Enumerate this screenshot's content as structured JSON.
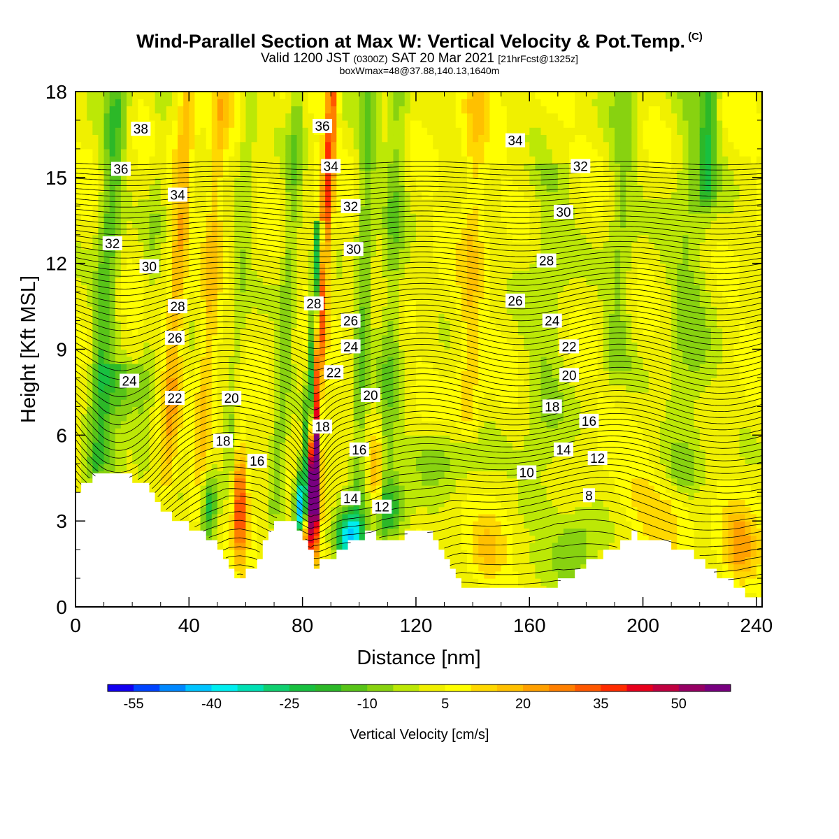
{
  "title": {
    "main": "Wind-Parallel Section at Max W: Vertical Velocity & Pot.Temp.",
    "copyright": "(C)",
    "valid_prefix": "Valid 1200 JST",
    "valid_z": "(0300Z)",
    "valid_date": "SAT 20 Mar 2021",
    "forecast": "[21hrFcst@1325z]",
    "box": "boxWmax=48@37.88,140.13,1640m"
  },
  "chart_data": {
    "type": "heatmap",
    "xlabel": "Distance [nm]",
    "ylabel": "Height [Kft MSL]",
    "xlim": [
      0,
      242
    ],
    "ylim": [
      0,
      18
    ],
    "xticks": [
      0,
      40,
      80,
      120,
      160,
      200,
      240
    ],
    "yticks": [
      0,
      3,
      6,
      9,
      12,
      15,
      18
    ],
    "colorbar": {
      "label": "Vertical Velocity [cm/s]",
      "tick_labels": [
        "-55",
        "-40",
        "-25",
        "-10",
        "5",
        "20",
        "35",
        "50"
      ],
      "bins": [
        -60,
        -55,
        -50,
        -45,
        -40,
        -35,
        -30,
        -25,
        -20,
        -15,
        -10,
        -5,
        0,
        5,
        10,
        15,
        20,
        25,
        30,
        35,
        40,
        45,
        50,
        55,
        60
      ],
      "colors": [
        "#1200f0",
        "#0044ff",
        "#0088ff",
        "#00c4ff",
        "#00eef0",
        "#00e0b4",
        "#10d070",
        "#18c040",
        "#2cb828",
        "#58c418",
        "#88d210",
        "#bce806",
        "#f0f000",
        "#ffff00",
        "#ffd800",
        "#ffc000",
        "#ffa000",
        "#ff8000",
        "#ff5800",
        "#ff2c00",
        "#e8001c",
        "#c00040",
        "#960064",
        "#780080"
      ]
    },
    "terrain_kft": [
      [
        0,
        3.9
      ],
      [
        2,
        4.2
      ],
      [
        7,
        4.5
      ],
      [
        10,
        4.8
      ],
      [
        19,
        4.5
      ],
      [
        25,
        4.2
      ],
      [
        28,
        3.8
      ],
      [
        31,
        3.4
      ],
      [
        35,
        3.1
      ],
      [
        39,
        2.9
      ],
      [
        44,
        2.6
      ],
      [
        48,
        2.3
      ],
      [
        51,
        2.0
      ],
      [
        54,
        1.3
      ],
      [
        58,
        1.0
      ],
      [
        63,
        1.3
      ],
      [
        66,
        2.0
      ],
      [
        69,
        2.6
      ],
      [
        72,
        3.1
      ],
      [
        77,
        3.1
      ],
      [
        81,
        2.2
      ],
      [
        83,
        2.0
      ],
      [
        84,
        1.3
      ],
      [
        87,
        1.5
      ],
      [
        94,
        2.0
      ],
      [
        98,
        2.3
      ],
      [
        104,
        2.6
      ],
      [
        108,
        2.2
      ],
      [
        114,
        2.3
      ],
      [
        118,
        2.6
      ],
      [
        123,
        2.6
      ],
      [
        126,
        2.5
      ],
      [
        130,
        1.9
      ],
      [
        133,
        1.2
      ],
      [
        136,
        0.7
      ],
      [
        170,
        0.7
      ],
      [
        172,
        1.0
      ],
      [
        178,
        1.3
      ],
      [
        184,
        1.7
      ],
      [
        190,
        2.0
      ],
      [
        197,
        2.5
      ],
      [
        210,
        2.2
      ],
      [
        218,
        1.9
      ],
      [
        222,
        1.5
      ],
      [
        226,
        1.1
      ],
      [
        230,
        0.9
      ],
      [
        234,
        0.7
      ],
      [
        238,
        0.3
      ],
      [
        242,
        0.2
      ]
    ],
    "w_field_cm_s": {
      "background": 4,
      "ridges": [
        {
          "x": 8,
          "w": 4,
          "y0": 4.5,
          "y1": 18,
          "v": -18
        },
        {
          "x": 14,
          "w": 7,
          "y0": 4.5,
          "y1": 8,
          "v": -12
        },
        {
          "x": 24,
          "w": 3,
          "y0": 4.5,
          "y1": 18,
          "v": -6
        },
        {
          "x": 33,
          "w": 3,
          "y0": 4,
          "y1": 18,
          "v": 15
        },
        {
          "x": 45,
          "w": 3,
          "y0": 3,
          "y1": 18,
          "v": 12
        },
        {
          "x": 55,
          "w": 3,
          "y0": 3,
          "y1": 18,
          "v": -8
        },
        {
          "x": 72,
          "w": 3,
          "y0": 3,
          "y1": 18,
          "v": -12
        },
        {
          "x": 82,
          "w": 1.5,
          "y0": 3,
          "y1": 13,
          "v": -35
        },
        {
          "x": 84,
          "w": 2,
          "y0": 1.5,
          "y1": 18,
          "v": 32
        },
        {
          "x": 100,
          "w": 3,
          "y0": 2,
          "y1": 18,
          "v": -14
        },
        {
          "x": 110,
          "w": 4,
          "y0": 2.5,
          "y1": 18,
          "v": -12
        },
        {
          "x": 138,
          "w": 4,
          "y0": 6,
          "y1": 18,
          "v": 10
        },
        {
          "x": 165,
          "w": 8,
          "y0": 3,
          "y1": 15,
          "v": -8
        },
        {
          "x": 190,
          "w": 5,
          "y0": 8,
          "y1": 18,
          "v": -10
        },
        {
          "x": 215,
          "w": 8,
          "y0": 4,
          "y1": 18,
          "v": -10
        },
        {
          "x": 220,
          "w": 3,
          "y0": 14,
          "y1": 18,
          "v": -16
        }
      ],
      "blobs": [
        {
          "x": 47,
          "y": 3.6,
          "rx": 3,
          "ry": 1.2,
          "v": -30
        },
        {
          "x": 58,
          "y": 3.8,
          "rx": 2.4,
          "ry": 2.2,
          "v": 32
        },
        {
          "x": 79,
          "y": 3.6,
          "rx": 2,
          "ry": 1.3,
          "v": -40
        },
        {
          "x": 84.5,
          "y": 4.3,
          "rx": 1.8,
          "ry": 2.2,
          "v": 55
        },
        {
          "x": 96,
          "y": 2.4,
          "rx": 5,
          "ry": 0.9,
          "v": -38
        },
        {
          "x": 106,
          "y": 4.6,
          "rx": 2,
          "ry": 1.5,
          "v": 20
        },
        {
          "x": 112,
          "y": 3.4,
          "rx": 6,
          "ry": 1.0,
          "v": -16
        },
        {
          "x": 130,
          "y": 5.3,
          "rx": 12,
          "ry": 1.2,
          "v": -10
        },
        {
          "x": 176,
          "y": 2.0,
          "rx": 8,
          "ry": 1.4,
          "v": -14
        },
        {
          "x": 145,
          "y": 1.8,
          "rx": 6,
          "ry": 1.1,
          "v": 12
        },
        {
          "x": 234,
          "y": 2.0,
          "rx": 6,
          "ry": 1.3,
          "v": 18
        },
        {
          "x": 205,
          "y": 3.5,
          "rx": 12,
          "ry": 1.2,
          "v": 10
        }
      ]
    },
    "theta_isentropes_C": {
      "levels": [
        8,
        10,
        12,
        14,
        16,
        18,
        20,
        22,
        24,
        26,
        28,
        30,
        32,
        34,
        36,
        38
      ],
      "labels": [
        {
          "text": "38",
          "x": 23,
          "y": 16.7
        },
        {
          "text": "36",
          "x": 16,
          "y": 15.3
        },
        {
          "text": "34",
          "x": 36,
          "y": 14.4
        },
        {
          "text": "32",
          "x": 13,
          "y": 12.7
        },
        {
          "text": "30",
          "x": 26,
          "y": 11.9
        },
        {
          "text": "28",
          "x": 36,
          "y": 10.5
        },
        {
          "text": "26",
          "x": 35,
          "y": 9.4
        },
        {
          "text": "24",
          "x": 19,
          "y": 7.9
        },
        {
          "text": "22",
          "x": 35,
          "y": 7.3
        },
        {
          "text": "20",
          "x": 55,
          "y": 7.3
        },
        {
          "text": "18",
          "x": 52,
          "y": 5.8
        },
        {
          "text": "16",
          "x": 64,
          "y": 5.1
        },
        {
          "text": "36",
          "x": 87,
          "y": 16.8
        },
        {
          "text": "34",
          "x": 90,
          "y": 15.4
        },
        {
          "text": "32",
          "x": 97,
          "y": 14.0
        },
        {
          "text": "30",
          "x": 98,
          "y": 12.5
        },
        {
          "text": "28",
          "x": 84,
          "y": 10.6
        },
        {
          "text": "26",
          "x": 97,
          "y": 10.0
        },
        {
          "text": "24",
          "x": 97,
          "y": 9.1
        },
        {
          "text": "22",
          "x": 91,
          "y": 8.2
        },
        {
          "text": "20",
          "x": 104,
          "y": 7.4
        },
        {
          "text": "18",
          "x": 87,
          "y": 6.3
        },
        {
          "text": "16",
          "x": 100,
          "y": 5.5
        },
        {
          "text": "14",
          "x": 97,
          "y": 3.8
        },
        {
          "text": "12",
          "x": 108,
          "y": 3.5
        },
        {
          "text": "34",
          "x": 155,
          "y": 16.3
        },
        {
          "text": "32",
          "x": 178,
          "y": 15.4
        },
        {
          "text": "30",
          "x": 172,
          "y": 13.8
        },
        {
          "text": "28",
          "x": 166,
          "y": 12.1
        },
        {
          "text": "26",
          "x": 155,
          "y": 10.7
        },
        {
          "text": "24",
          "x": 168,
          "y": 10.0
        },
        {
          "text": "22",
          "x": 174,
          "y": 9.1
        },
        {
          "text": "20",
          "x": 174,
          "y": 8.1
        },
        {
          "text": "18",
          "x": 168,
          "y": 7.0
        },
        {
          "text": "16",
          "x": 181,
          "y": 6.5
        },
        {
          "text": "14",
          "x": 172,
          "y": 5.5
        },
        {
          "text": "12",
          "x": 184,
          "y": 5.2
        },
        {
          "text": "10",
          "x": 159,
          "y": 4.7
        },
        {
          "text": "8",
          "x": 181,
          "y": 3.9
        }
      ]
    },
    "grid": false,
    "legend": "bottom"
  }
}
